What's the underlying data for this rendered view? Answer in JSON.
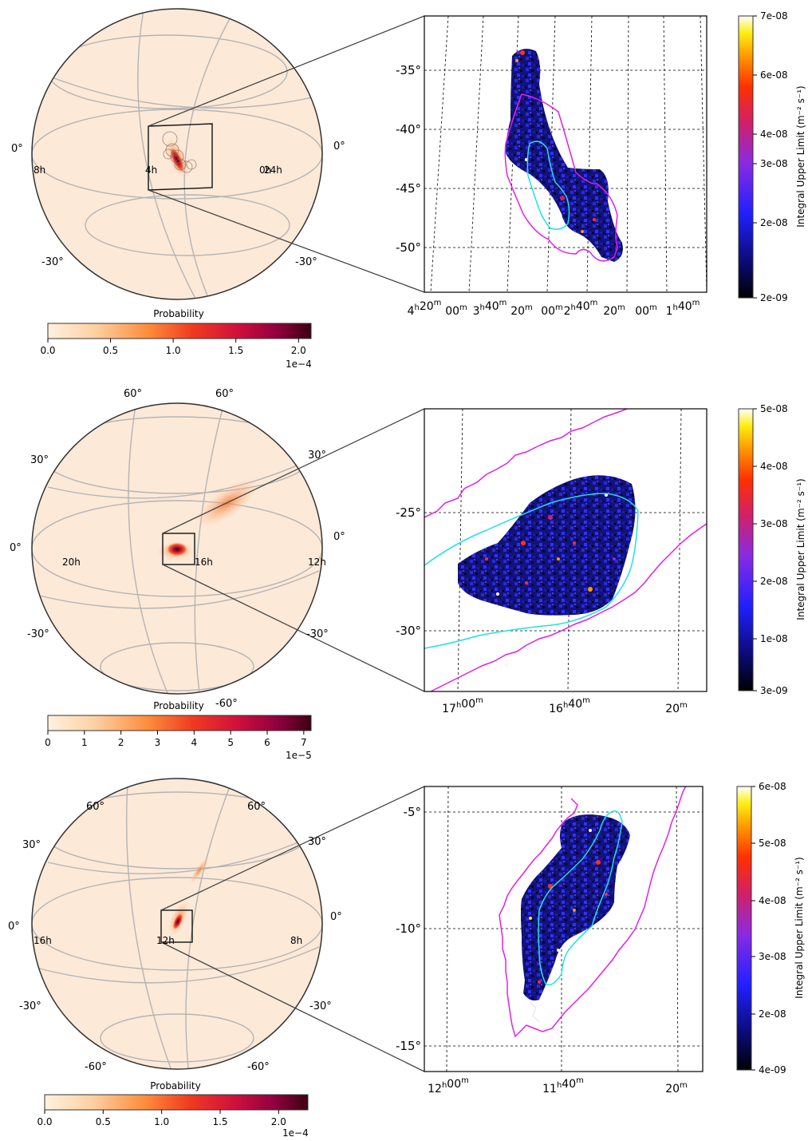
{
  "chart_data": [
    {
      "type": "heatmap",
      "projection": "globe",
      "globe_lat_labels": [
        "0°",
        "0°",
        "-30°",
        "-30°"
      ],
      "globe_ra_labels": [
        "8h",
        "4h",
        "0h",
        "24h"
      ],
      "colorbar": {
        "label": "Probability",
        "ticks": [
          "0.0",
          "0.5",
          "1.0",
          "1.5",
          "2.0"
        ],
        "tick_values": [
          0,
          0.5,
          1.0,
          1.5,
          2.0
        ],
        "range": [
          0,
          2.1
        ],
        "multiplier": "1e−4"
      }
    },
    {
      "type": "heatmap",
      "projection": "zoom",
      "dec_ticks": [
        "-35°",
        "-40°",
        "-45°",
        "-50°"
      ],
      "dec_values": [
        -35,
        -40,
        -45,
        -50
      ],
      "ra_ticks": [
        "4h20m",
        "00m",
        "3h40m",
        "20m",
        "00m",
        "2h40m",
        "20m",
        "00m",
        "1h40m"
      ],
      "contours": [
        "cyan",
        "magenta"
      ],
      "colorbar": {
        "label": "Integral Upper Limit (m⁻² s⁻¹)",
        "ticks": [
          "7e-08",
          "6e-08",
          "4e-08",
          "3e-08",
          "2e-08",
          "2e-09"
        ],
        "tick_values": [
          7e-08,
          6e-08,
          4e-08,
          3e-08,
          2e-08,
          2e-09
        ],
        "range": [
          2e-09,
          7e-08
        ]
      }
    },
    {
      "type": "heatmap",
      "projection": "globe",
      "globe_lat_labels": [
        "60°",
        "60°",
        "30°",
        "30°",
        "0°",
        "0°",
        "-30°",
        "-30°",
        "-60°"
      ],
      "globe_ra_labels": [
        "20h",
        "16h",
        "12h"
      ],
      "colorbar": {
        "label": "Probability",
        "ticks": [
          "0",
          "1",
          "2",
          "3",
          "4",
          "5",
          "6",
          "7"
        ],
        "tick_values": [
          0,
          1,
          2,
          3,
          4,
          5,
          6,
          7
        ],
        "range": [
          0,
          7.2
        ],
        "multiplier": "1e−5"
      }
    },
    {
      "type": "heatmap",
      "projection": "zoom",
      "dec_ticks": [
        "-25°",
        "-30°"
      ],
      "dec_values": [
        -25,
        -30
      ],
      "ra_ticks": [
        "17h00m",
        "16h40m",
        "20m"
      ],
      "contours": [
        "cyan",
        "magenta"
      ],
      "colorbar": {
        "label": "Integral Upper Limit (m⁻² s⁻¹)",
        "ticks": [
          "5e-08",
          "4e-08",
          "3e-08",
          "2e-08",
          "1e-08",
          "3e-09"
        ],
        "tick_values": [
          5e-08,
          4e-08,
          3e-08,
          2e-08,
          1e-08,
          3e-09
        ],
        "range": [
          3e-09,
          5e-08
        ]
      }
    },
    {
      "type": "heatmap",
      "projection": "globe",
      "globe_lat_labels": [
        "60°",
        "60°",
        "30°",
        "30°",
        "0°",
        "0°",
        "-30°",
        "-30°",
        "-60°",
        "-60°"
      ],
      "globe_ra_labels": [
        "16h",
        "12h",
        "8h"
      ],
      "colorbar": {
        "label": "Probability",
        "ticks": [
          "0.0",
          "0.5",
          "1.0",
          "1.5",
          "2.0"
        ],
        "tick_values": [
          0,
          0.5,
          1.0,
          1.5,
          2.0
        ],
        "range": [
          0,
          2.25
        ],
        "multiplier": "1e−4"
      }
    },
    {
      "type": "heatmap",
      "projection": "zoom",
      "dec_ticks": [
        "-5°",
        "-10°",
        "-15°"
      ],
      "dec_values": [
        -5,
        -10,
        -15
      ],
      "ra_ticks": [
        "12h00m",
        "11h40m",
        "20m"
      ],
      "contours": [
        "cyan",
        "magenta"
      ],
      "colorbar": {
        "label": "Integral Upper Limit (m⁻² s⁻¹)",
        "ticks": [
          "6e-08",
          "5e-08",
          "4e-08",
          "3e-08",
          "2e-08",
          "4e-09"
        ],
        "tick_values": [
          6e-08,
          5e-08,
          4e-08,
          3e-08,
          2e-08,
          4e-09
        ],
        "range": [
          4e-09,
          6e-08
        ]
      }
    }
  ]
}
